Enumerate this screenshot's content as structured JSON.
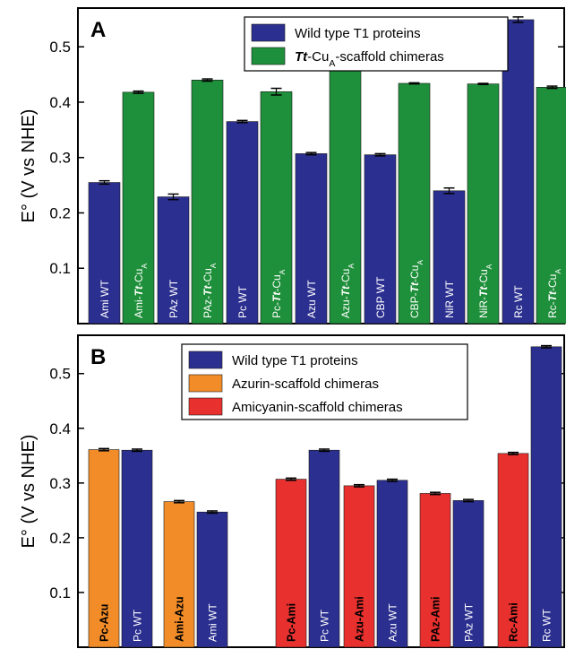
{
  "chart_data": [
    {
      "panel": "A",
      "type": "bar",
      "ylabel": "E° (V vs NHE)",
      "ylim": [
        0.0,
        0.57
      ],
      "yticks": [
        "0.1",
        "0.2",
        "0.3",
        "0.4",
        "0.5"
      ],
      "legend": {
        "placement": "top-right",
        "entries": [
          {
            "label": "Wild type T1 proteins",
            "color": "#2b2f8f"
          },
          {
            "label_parts": [
              [
                "Tt",
                "italic"
              ],
              [
                "-Cu",
                ""
              ],
              [
                "A",
                "sub"
              ],
              [
                "-scaffold chimeras",
                ""
              ]
            ],
            "color": "#1e8f3a"
          }
        ]
      },
      "bars": [
        {
          "label_parts": [
            [
              "Ami WT",
              ""
            ]
          ],
          "value": 0.255,
          "err": 0.003,
          "color": "#2b2f8f",
          "label_style": "normal"
        },
        {
          "label_parts": [
            [
              "Ami-",
              ""
            ],
            [
              "Tt",
              "italic"
            ],
            [
              "-Cu",
              ""
            ],
            [
              "A",
              "sub"
            ]
          ],
          "value": 0.418,
          "err": 0.002,
          "color": "#1e8f3a",
          "label_style": "normal"
        },
        {
          "label_parts": [
            [
              "PAz WT",
              ""
            ]
          ],
          "value": 0.229,
          "err": 0.005,
          "color": "#2b2f8f",
          "label_style": "normal"
        },
        {
          "label_parts": [
            [
              "PAz-",
              ""
            ],
            [
              "Tt",
              "italic"
            ],
            [
              "-Cu",
              ""
            ],
            [
              "A",
              "sub"
            ]
          ],
          "value": 0.44,
          "err": 0.002,
          "color": "#1e8f3a",
          "label_style": "normal"
        },
        {
          "label_parts": [
            [
              "Pc WT",
              ""
            ]
          ],
          "value": 0.365,
          "err": 0.002,
          "color": "#2b2f8f",
          "label_style": "normal"
        },
        {
          "label_parts": [
            [
              "Pc-",
              ""
            ],
            [
              "Tt",
              "italic"
            ],
            [
              "-Cu",
              ""
            ],
            [
              "A",
              "sub"
            ]
          ],
          "value": 0.419,
          "err": 0.006,
          "color": "#1e8f3a",
          "label_style": "normal"
        },
        {
          "label_parts": [
            [
              "Azu WT",
              ""
            ]
          ],
          "value": 0.307,
          "err": 0.002,
          "color": "#2b2f8f",
          "label_style": "normal"
        },
        {
          "label_parts": [
            [
              "Azu-",
              ""
            ],
            [
              "Tt",
              "italic"
            ],
            [
              "-Cu",
              ""
            ],
            [
              "A",
              "sub"
            ]
          ],
          "value": 0.468,
          "err": 0.003,
          "color": "#1e8f3a",
          "label_style": "normal"
        },
        {
          "label_parts": [
            [
              "CBP WT",
              ""
            ]
          ],
          "value": 0.305,
          "err": 0.002,
          "color": "#2b2f8f",
          "label_style": "normal"
        },
        {
          "label_parts": [
            [
              "CBP-",
              ""
            ],
            [
              "Tt",
              "italic"
            ],
            [
              "-Cu",
              ""
            ],
            [
              "A",
              "sub"
            ]
          ],
          "value": 0.434,
          "err": 0.001,
          "color": "#1e8f3a",
          "label_style": "normal"
        },
        {
          "label_parts": [
            [
              "NiR WT",
              ""
            ]
          ],
          "value": 0.24,
          "err": 0.005,
          "color": "#2b2f8f",
          "label_style": "normal"
        },
        {
          "label_parts": [
            [
              "NiR-",
              ""
            ],
            [
              "Tt",
              "italic"
            ],
            [
              "-Cu",
              ""
            ],
            [
              "A",
              "sub"
            ]
          ],
          "value": 0.433,
          "err": 0.001,
          "color": "#1e8f3a",
          "label_style": "normal"
        },
        {
          "label_parts": [
            [
              "Rc WT",
              ""
            ]
          ],
          "value": 0.549,
          "err": 0.005,
          "color": "#2b2f8f",
          "label_style": "normal"
        },
        {
          "label_parts": [
            [
              "Rc-",
              ""
            ],
            [
              "Tt",
              "italic"
            ],
            [
              "-Cu",
              ""
            ],
            [
              "A",
              "sub"
            ]
          ],
          "value": 0.427,
          "err": 0.002,
          "color": "#1e8f3a",
          "label_style": "normal"
        }
      ]
    },
    {
      "panel": "B",
      "type": "bar",
      "ylabel": "E° (V vs NHE)",
      "ylim": [
        0.0,
        0.57
      ],
      "yticks": [
        "0.1",
        "0.2",
        "0.3",
        "0.4",
        "0.5"
      ],
      "legend": {
        "placement": "top-right",
        "entries": [
          {
            "label_parts": [
              [
                "Wild type T1 proteins",
                ""
              ]
            ],
            "color": "#2b2f8f"
          },
          {
            "label_parts": [
              [
                "Azurin-scaffold chimeras",
                ""
              ]
            ],
            "color": "#f28c28"
          },
          {
            "label_parts": [
              [
                "Amicyanin-scaffold chimeras",
                ""
              ]
            ],
            "color": "#e8302e"
          }
        ]
      },
      "bars": [
        {
          "label_parts": [
            [
              "Pc-Azu",
              ""
            ]
          ],
          "value": 0.361,
          "err": 0.002,
          "color": "#f28c28",
          "label_style": "bold"
        },
        {
          "label_parts": [
            [
              "Pc WT",
              ""
            ]
          ],
          "value": 0.36,
          "err": 0.002,
          "color": "#2b2f8f",
          "label_style": "normal"
        },
        {
          "label_parts": [
            [
              "Ami-Azu",
              ""
            ]
          ],
          "value": 0.266,
          "err": 0.002,
          "color": "#f28c28",
          "label_style": "bold"
        },
        {
          "label_parts": [
            [
              "Ami WT",
              ""
            ]
          ],
          "value": 0.247,
          "err": 0.002,
          "color": "#2b2f8f",
          "label_style": "normal"
        },
        {
          "label_parts": [
            [
              "Pc-Ami",
              ""
            ]
          ],
          "value": 0.307,
          "err": 0.002,
          "color": "#e8302e",
          "label_style": "bold"
        },
        {
          "label_parts": [
            [
              "Pc WT",
              ""
            ]
          ],
          "value": 0.36,
          "err": 0.002,
          "color": "#2b2f8f",
          "label_style": "normal"
        },
        {
          "label_parts": [
            [
              "Azu-Ami",
              ""
            ]
          ],
          "value": 0.295,
          "err": 0.002,
          "color": "#e8302e",
          "label_style": "bold"
        },
        {
          "label_parts": [
            [
              "Azu WT",
              ""
            ]
          ],
          "value": 0.305,
          "err": 0.002,
          "color": "#2b2f8f",
          "label_style": "normal"
        },
        {
          "label_parts": [
            [
              "PAz-Ami",
              ""
            ]
          ],
          "value": 0.281,
          "err": 0.002,
          "color": "#e8302e",
          "label_style": "bold"
        },
        {
          "label_parts": [
            [
              "PAz WT",
              ""
            ]
          ],
          "value": 0.268,
          "err": 0.002,
          "color": "#2b2f8f",
          "label_style": "normal"
        },
        {
          "label_parts": [
            [
              "Rc-Ami",
              ""
            ]
          ],
          "value": 0.354,
          "err": 0.002,
          "color": "#e8302e",
          "label_style": "bold"
        },
        {
          "label_parts": [
            [
              "Rc WT",
              ""
            ]
          ],
          "value": 0.549,
          "err": 0.002,
          "color": "#2b2f8f",
          "label_style": "normal"
        }
      ]
    }
  ]
}
